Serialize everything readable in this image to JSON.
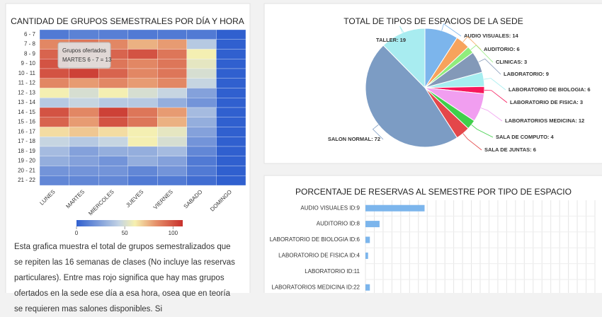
{
  "chart_data": [
    {
      "type": "heatmap",
      "title": "CANTIDAD DE GRUPOS SEMESTRALES POR DÍA Y HORA",
      "categories": [
        "LUNES",
        "MARTES",
        "MIERCOLES",
        "JUEVES",
        "VIERNES",
        "SABADO",
        "DOMINGO"
      ],
      "y_categories": [
        "6 - 7",
        "7 - 8",
        "8 - 9",
        "9 - 10",
        "10 - 11",
        "11 - 12",
        "12 - 13",
        "13 - 14",
        "14 - 15",
        "15 - 16",
        "16 - 17",
        "17 - 18",
        "18 - 19",
        "19 - 20",
        "20 - 21",
        "21 - 22"
      ],
      "values": [
        [
          10,
          13,
          12,
          10,
          10,
          10,
          0
        ],
        [
          85,
          90,
          85,
          75,
          80,
          40,
          0
        ],
        [
          95,
          90,
          95,
          100,
          90,
          60,
          0
        ],
        [
          100,
          85,
          90,
          85,
          90,
          55,
          0
        ],
        [
          100,
          105,
          95,
          85,
          90,
          50,
          0
        ],
        [
          85,
          80,
          85,
          80,
          85,
          45,
          0
        ],
        [
          60,
          50,
          60,
          50,
          45,
          25,
          0
        ],
        [
          40,
          45,
          40,
          40,
          30,
          20,
          0
        ],
        [
          100,
          85,
          105,
          90,
          80,
          35,
          0
        ],
        [
          95,
          80,
          100,
          90,
          75,
          30,
          0
        ],
        [
          65,
          70,
          65,
          60,
          55,
          25,
          0
        ],
        [
          45,
          40,
          45,
          60,
          50,
          20,
          0
        ],
        [
          35,
          25,
          30,
          30,
          35,
          15,
          0
        ],
        [
          30,
          25,
          20,
          30,
          25,
          10,
          0
        ],
        [
          20,
          20,
          20,
          15,
          20,
          10,
          0
        ],
        [
          15,
          15,
          15,
          10,
          10,
          5,
          0
        ]
      ],
      "zlim": [
        0,
        110
      ],
      "zticks": [
        0,
        50,
        100
      ],
      "colorscale": [
        [
          0,
          "#3060cf"
        ],
        [
          0.4,
          "#c3d3e4"
        ],
        [
          0.55,
          "#f6f0b0"
        ],
        [
          0.75,
          "#e5906a"
        ],
        [
          1,
          "#c8302c"
        ]
      ],
      "tooltip": {
        "title": "Grupos ofertados",
        "label": "MARTES 6 - 7 = 13"
      }
    },
    {
      "type": "pie",
      "title": "TOTAL DE TIPOS DE ESPACIOS DE LA SEDE",
      "values": [
        14,
        6,
        3,
        9,
        6,
        3,
        12,
        4,
        6,
        72,
        19
      ],
      "value_labels": [
        "AUDIO VISUALES: 14",
        "AUDITORIO: 6",
        "CLINICAS: 3",
        "LABORATORIO: 9",
        "LABORATORIO DE BIOLOGIA: 6",
        "LABORATORIO DE FISICA: 3",
        "LABORATORIOS MEDICINA: 12",
        "SALA DE COMPUTO: 4",
        "SALA DE JUNTAS: 6",
        "SALON NORMAL: 72",
        "TALLER: 19"
      ],
      "colors": [
        "#7cb5ec",
        "#f7a35c",
        "#90ed7d",
        "#8399b8",
        "#a6eef0",
        "#f7185b",
        "#f19ef0",
        "#3fcf4a",
        "#e4474a",
        "#7c9cc4",
        "#a8ecf0"
      ]
    },
    {
      "type": "hbar",
      "title": "PORCENTAJE DE RESERVAS AL SEMESTRE POR TIPO DE ESPACIO",
      "categories": [
        "AUDIO VISUALES ID:9",
        "AUDITORIO ID:8",
        "LABORATORIO DE BIOLOGIA ID:6",
        "LABORATORIO DE FISICA ID:4",
        "LABORATORIO ID:11",
        "LABORATORIOS MEDICINA ID:22"
      ],
      "values": [
        6.7,
        1.6,
        0.5,
        0.3,
        0,
        0.5
      ],
      "color": "#7cb5ec",
      "xlim": [
        0,
        26
      ],
      "xticks": [
        0,
        1,
        2,
        3,
        4,
        5,
        6,
        7,
        8,
        9,
        10,
        11,
        12,
        13,
        14,
        15,
        16,
        17,
        18,
        19,
        20,
        21,
        22,
        23,
        24,
        25,
        26
      ],
      "grid": true
    }
  ],
  "description": "Esta grafica muestra el total de grupos semestralizados que se repiten las 16 semanas de clases (No incluye las reservas particulares). Entre mas rojo significa que hay mas grupos ofertados en la sede ese día a esa hora, osea que en teoría se requieren mas salones disponibles. Si"
}
